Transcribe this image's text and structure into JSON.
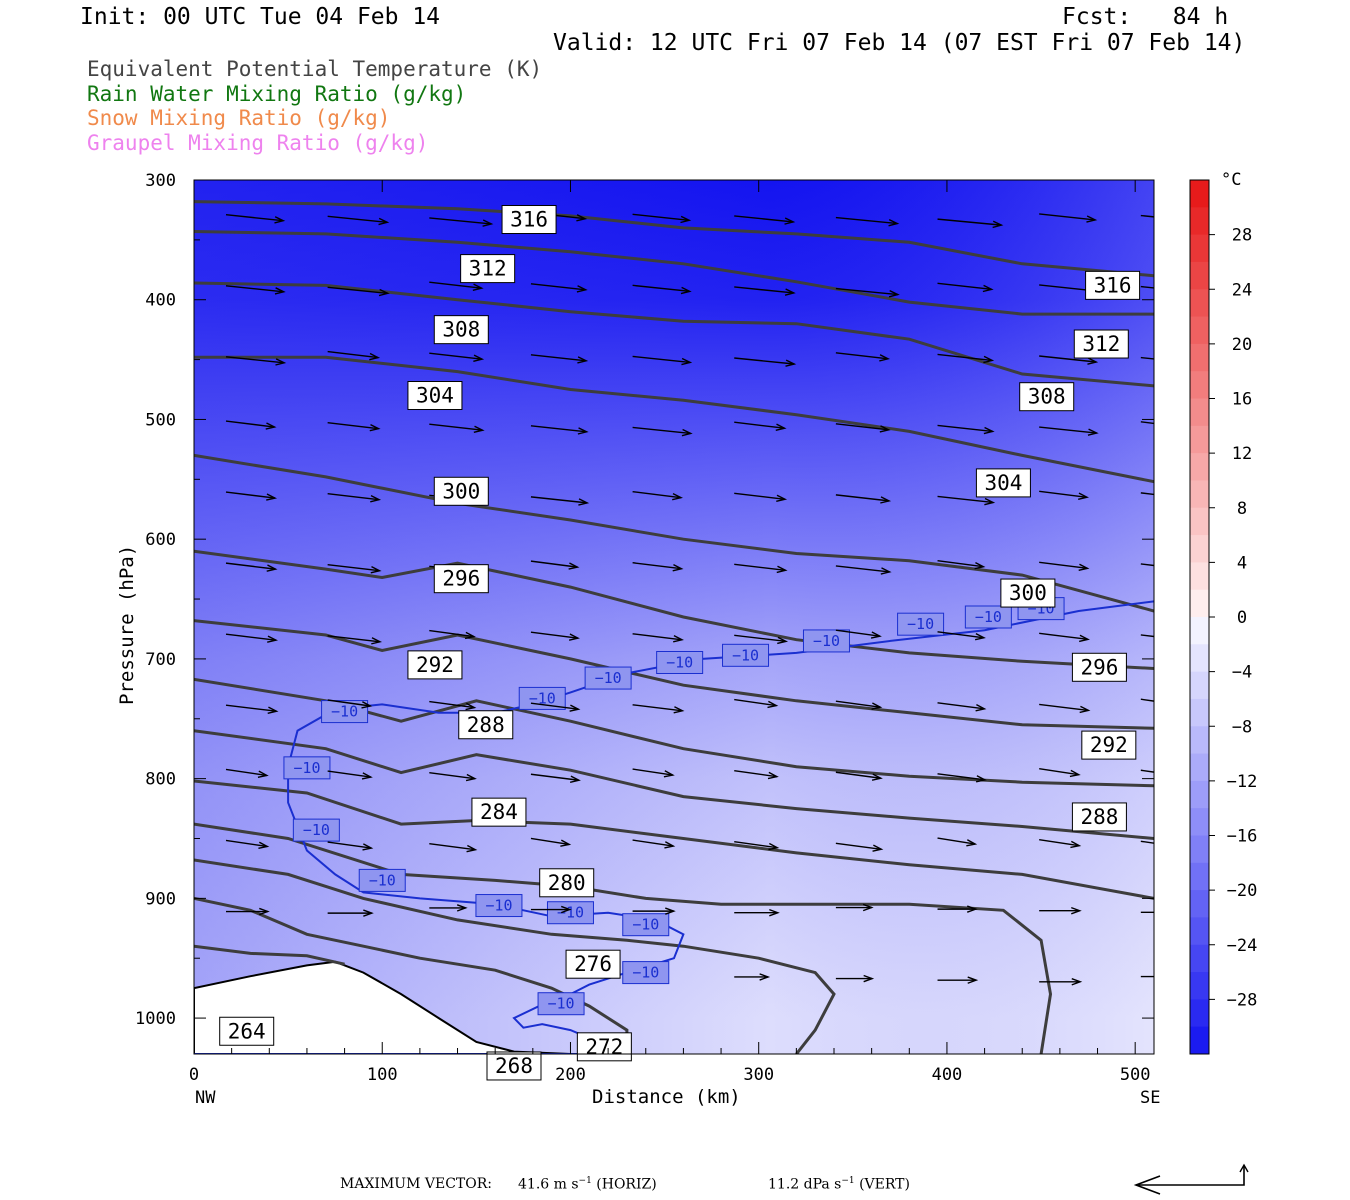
{
  "header": {
    "init": "Init: 00 UTC Tue 04 Feb 14",
    "fcst": "Fcst:   84 h",
    "valid": "Valid: 12 UTC Fri 07 Feb 14 (07 EST Fri 07 Feb 14)"
  },
  "legend": [
    {
      "text": "Equivalent Potential Temperature (K)",
      "color": "#444444"
    },
    {
      "text": "Rain Water Mixing Ratio (g/kg)",
      "color": "#117711"
    },
    {
      "text": "Snow Mixing Ratio (g/kg)",
      "color": "#f08a4b"
    },
    {
      "text": "Graupel Mixing Ratio (g/kg)",
      "color": "#ee82ee"
    }
  ],
  "axes": {
    "xlabel": "Distance (km)",
    "ylabel": "Pressure (hPa)",
    "left_end": "NW",
    "right_end": "SE",
    "xticks": [
      "0",
      "100",
      "200",
      "300",
      "400",
      "500"
    ],
    "yticks": [
      "300",
      "400",
      "500",
      "600",
      "700",
      "800",
      "900",
      "1000"
    ]
  },
  "colorbar": {
    "unit": "°C",
    "labels": [
      "28",
      "24",
      "20",
      "16",
      "12",
      "8",
      "4",
      "0",
      "−4",
      "−8",
      "−12",
      "−16",
      "−20",
      "−24",
      "−28"
    ]
  },
  "footer": {
    "max_vector_label": "MAXIMUM VECTOR:",
    "horiz": "41.6 m s",
    "horiz_exp": "−1",
    "horiz_tag": "(HORIZ)",
    "vert": "11.2 dPa s",
    "vert_exp": "−1",
    "vert_tag": "(VERT)"
  },
  "chart_data": {
    "type": "cross-section",
    "x_unit": "km",
    "y_unit": "hPa",
    "xlim": [
      0,
      510
    ],
    "ylim": [
      300,
      1030
    ],
    "y_inverted": true,
    "theta_e_contours": [
      {
        "value": 316,
        "points": [
          [
            0,
            318
          ],
          [
            70,
            320
          ],
          [
            140,
            324
          ],
          [
            200,
            330
          ],
          [
            260,
            340
          ],
          [
            320,
            345
          ],
          [
            380,
            352
          ],
          [
            440,
            370
          ],
          [
            510,
            380
          ]
        ]
      },
      {
        "value": 312,
        "points": [
          [
            0,
            343
          ],
          [
            70,
            345
          ],
          [
            140,
            352
          ],
          [
            200,
            360
          ],
          [
            260,
            370
          ],
          [
            320,
            385
          ],
          [
            380,
            402
          ],
          [
            440,
            412
          ],
          [
            510,
            412
          ]
        ]
      },
      {
        "value": 308,
        "points": [
          [
            0,
            386
          ],
          [
            70,
            388
          ],
          [
            140,
            400
          ],
          [
            200,
            410
          ],
          [
            260,
            418
          ],
          [
            320,
            420
          ],
          [
            380,
            433
          ],
          [
            440,
            462
          ],
          [
            510,
            472
          ]
        ]
      },
      {
        "value": 304,
        "points": [
          [
            0,
            448
          ],
          [
            70,
            448
          ],
          [
            140,
            460
          ],
          [
            200,
            475
          ],
          [
            260,
            484
          ],
          [
            320,
            496
          ],
          [
            380,
            510
          ],
          [
            440,
            530
          ],
          [
            510,
            552
          ]
        ]
      },
      {
        "value": 300,
        "points": [
          [
            0,
            530
          ],
          [
            70,
            548
          ],
          [
            140,
            570
          ],
          [
            200,
            584
          ],
          [
            260,
            600
          ],
          [
            320,
            612
          ],
          [
            380,
            618
          ],
          [
            440,
            630
          ],
          [
            510,
            660
          ]
        ]
      },
      {
        "value": 296,
        "points": [
          [
            0,
            610
          ],
          [
            70,
            625
          ],
          [
            100,
            632
          ],
          [
            140,
            620
          ],
          [
            200,
            640
          ],
          [
            260,
            665
          ],
          [
            320,
            684
          ],
          [
            380,
            695
          ],
          [
            440,
            702
          ],
          [
            510,
            708
          ]
        ]
      },
      {
        "value": 292,
        "points": [
          [
            0,
            668
          ],
          [
            70,
            680
          ],
          [
            100,
            693
          ],
          [
            140,
            680
          ],
          [
            200,
            700
          ],
          [
            260,
            722
          ],
          [
            320,
            735
          ],
          [
            380,
            745
          ],
          [
            440,
            755
          ],
          [
            510,
            758
          ]
        ]
      },
      {
        "value": 288,
        "points": [
          [
            0,
            717
          ],
          [
            70,
            735
          ],
          [
            110,
            752
          ],
          [
            150,
            735
          ],
          [
            200,
            752
          ],
          [
            260,
            775
          ],
          [
            320,
            790
          ],
          [
            380,
            798
          ],
          [
            440,
            803
          ],
          [
            510,
            806
          ]
        ]
      },
      {
        "value": 284,
        "points": [
          [
            0,
            760
          ],
          [
            70,
            775
          ],
          [
            110,
            795
          ],
          [
            150,
            780
          ],
          [
            200,
            793
          ],
          [
            260,
            815
          ],
          [
            320,
            825
          ],
          [
            380,
            833
          ],
          [
            440,
            840
          ],
          [
            510,
            850
          ]
        ]
      },
      {
        "value": 280,
        "points": [
          [
            0,
            802
          ],
          [
            60,
            812
          ],
          [
            110,
            838
          ],
          [
            150,
            835
          ],
          [
            200,
            838
          ],
          [
            260,
            850
          ],
          [
            320,
            862
          ],
          [
            380,
            872
          ],
          [
            440,
            880
          ],
          [
            510,
            900
          ]
        ]
      },
      {
        "value": 276,
        "points": [
          [
            0,
            838
          ],
          [
            50,
            850
          ],
          [
            110,
            880
          ],
          [
            160,
            885
          ],
          [
            200,
            890
          ],
          [
            240,
            900
          ],
          [
            280,
            905
          ],
          [
            320,
            905
          ],
          [
            380,
            905
          ],
          [
            430,
            910
          ],
          [
            450,
            935
          ],
          [
            455,
            980
          ],
          [
            450,
            1030
          ]
        ]
      },
      {
        "value": 272,
        "points": [
          [
            0,
            868
          ],
          [
            50,
            880
          ],
          [
            90,
            900
          ],
          [
            140,
            918
          ],
          [
            190,
            930
          ],
          [
            230,
            935
          ],
          [
            260,
            940
          ],
          [
            300,
            950
          ],
          [
            330,
            962
          ],
          [
            340,
            980
          ],
          [
            330,
            1010
          ],
          [
            320,
            1030
          ]
        ]
      },
      {
        "value": 268,
        "points": [
          [
            0,
            900
          ],
          [
            30,
            910
          ],
          [
            60,
            930
          ],
          [
            90,
            940
          ],
          [
            120,
            950
          ],
          [
            160,
            960
          ],
          [
            190,
            975
          ],
          [
            210,
            990
          ],
          [
            230,
            1010
          ],
          [
            230,
            1030
          ]
        ]
      },
      {
        "value": 264,
        "points": [
          [
            0,
            940
          ],
          [
            30,
            946
          ],
          [
            60,
            948
          ],
          [
            80,
            955
          ]
        ]
      }
    ],
    "theta_e_labels": [
      {
        "value": 316,
        "x": 178,
        "p": 333
      },
      {
        "value": 312,
        "x": 156,
        "p": 374
      },
      {
        "value": 308,
        "x": 142,
        "p": 425
      },
      {
        "value": 304,
        "x": 128,
        "p": 480
      },
      {
        "value": 300,
        "x": 142,
        "p": 560
      },
      {
        "value": 296,
        "x": 142,
        "p": 633
      },
      {
        "value": 292,
        "x": 128,
        "p": 705
      },
      {
        "value": 288,
        "x": 155,
        "p": 755
      },
      {
        "value": 284,
        "x": 162,
        "p": 828
      },
      {
        "value": 280,
        "x": 198,
        "p": 887
      },
      {
        "value": 276,
        "x": 212,
        "p": 955
      },
      {
        "value": 272,
        "x": 218,
        "p": 1024
      },
      {
        "value": 268,
        "x": 170,
        "p": 1040
      },
      {
        "value": 264,
        "x": 28,
        "p": 1011
      },
      {
        "value": 316,
        "x": 488,
        "p": 388
      },
      {
        "value": 312,
        "x": 482,
        "p": 437
      },
      {
        "value": 308,
        "x": 453,
        "p": 481
      },
      {
        "value": 304,
        "x": 430,
        "p": 553
      },
      {
        "value": 300,
        "x": 443,
        "p": 645
      },
      {
        "value": 296,
        "x": 481,
        "p": 707
      },
      {
        "value": 292,
        "x": 486,
        "p": 772
      },
      {
        "value": 288,
        "x": 481,
        "p": 832
      }
    ],
    "temperature_isotherm": {
      "value": -10,
      "points": [
        [
          0,
          1030
        ],
        [
          220,
          1030
        ],
        [
          220,
          1028
        ],
        [
          215,
          1020
        ],
        [
          200,
          1010
        ],
        [
          185,
          1005
        ],
        [
          175,
          1008
        ],
        [
          170,
          1000
        ],
        [
          190,
          985
        ],
        [
          200,
          980
        ],
        [
          210,
          972
        ],
        [
          230,
          962
        ],
        [
          255,
          950
        ],
        [
          260,
          930
        ],
        [
          245,
          918
        ],
        [
          220,
          912
        ],
        [
          190,
          915
        ],
        [
          160,
          905
        ],
        [
          120,
          900
        ],
        [
          90,
          895
        ],
        [
          75,
          880
        ],
        [
          60,
          860
        ],
        [
          50,
          820
        ],
        [
          50,
          790
        ],
        [
          55,
          760
        ],
        [
          75,
          742
        ],
        [
          100,
          738
        ],
        [
          130,
          745
        ],
        [
          160,
          745
        ],
        [
          180,
          738
        ],
        [
          200,
          728
        ],
        [
          230,
          712
        ],
        [
          270,
          700
        ],
        [
          320,
          695
        ],
        [
          370,
          685
        ],
        [
          420,
          676
        ],
        [
          470,
          660
        ],
        [
          510,
          652
        ]
      ],
      "labels": [
        [
          80,
          744
        ],
        [
          60,
          791
        ],
        [
          65,
          843
        ],
        [
          100,
          885
        ],
        [
          162,
          906
        ],
        [
          200,
          912
        ],
        [
          240,
          922
        ],
        [
          240,
          962
        ],
        [
          195,
          988
        ],
        [
          185,
          733
        ],
        [
          220,
          716
        ],
        [
          258,
          703
        ],
        [
          293,
          697
        ],
        [
          336,
          685
        ],
        [
          386,
          671
        ],
        [
          422,
          665
        ],
        [
          450,
          658
        ]
      ]
    },
    "colorbar_levels": [
      32,
      30,
      28,
      26,
      24,
      22,
      20,
      18,
      16,
      14,
      12,
      10,
      8,
      6,
      4,
      2,
      0,
      -2,
      -4,
      -6,
      -8,
      -10,
      -12,
      -14,
      -16,
      -18,
      -20,
      -22,
      -24,
      -26,
      -28,
      -30,
      -32
    ],
    "temperature_field_sample": [
      {
        "p": 300,
        "t": -36
      },
      {
        "p": 400,
        "t": -30
      },
      {
        "p": 500,
        "t": -24
      },
      {
        "p": 600,
        "t": -18
      },
      {
        "p": 700,
        "t": -12
      },
      {
        "p": 800,
        "t": -8
      },
      {
        "p": 900,
        "t": -6
      },
      {
        "p": 1000,
        "t": -4
      }
    ],
    "terrain": [
      [
        0,
        975
      ],
      [
        30,
        965
      ],
      [
        60,
        956
      ],
      [
        75,
        953
      ],
      [
        90,
        962
      ],
      [
        110,
        980
      ],
      [
        130,
        1000
      ],
      [
        150,
        1020
      ],
      [
        170,
        1028
      ],
      [
        200,
        1030
      ],
      [
        230,
        1030
      ]
    ],
    "wind_vectors_note": "circulation vectors, max horizontal 41.6 m/s, max vertical 11.2 dPa/s"
  }
}
